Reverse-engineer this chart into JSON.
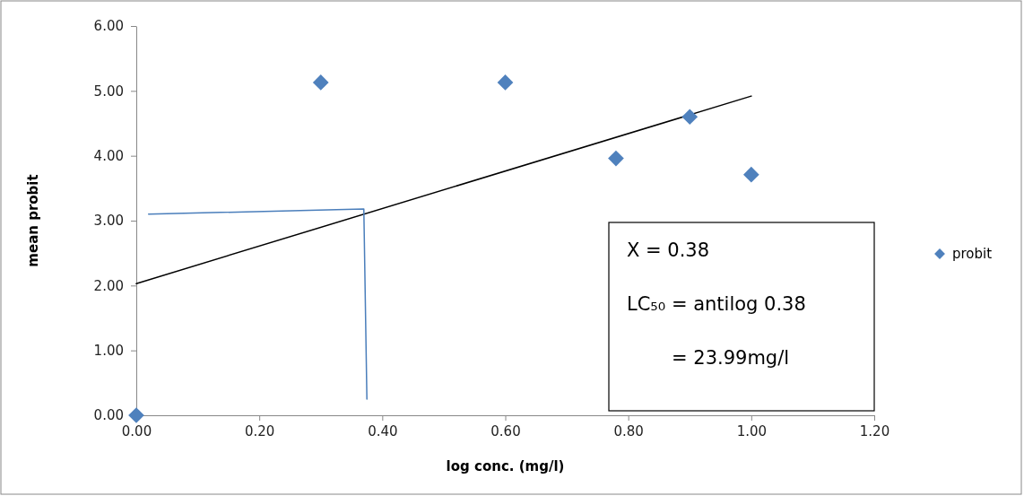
{
  "chart_data": {
    "type": "scatter",
    "xlabel": "log conc. (mg/l)",
    "ylabel": "mean probit",
    "xlim": [
      0,
      1.2
    ],
    "ylim": [
      0,
      6
    ],
    "xticks": [
      {
        "value": 0,
        "label": "0.00"
      },
      {
        "value": 0.2,
        "label": "0.20"
      },
      {
        "value": 0.4,
        "label": "0.40"
      },
      {
        "value": 0.6,
        "label": "0.60"
      },
      {
        "value": 0.8,
        "label": "0.80"
      },
      {
        "value": 1,
        "label": "1.00"
      },
      {
        "value": 1.2,
        "label": "1.20"
      }
    ],
    "yticks": [
      {
        "value": 0,
        "label": "0.00"
      },
      {
        "value": 1,
        "label": "1.00"
      },
      {
        "value": 2,
        "label": "2.00"
      },
      {
        "value": 3,
        "label": "3.00"
      },
      {
        "value": 4,
        "label": "4.00"
      },
      {
        "value": 5,
        "label": "5.00"
      },
      {
        "value": 6,
        "label": "6.00"
      }
    ],
    "legend": "right",
    "grid": false,
    "series": [
      {
        "name": "probit",
        "marker": "diamond",
        "color": "#4f81bd",
        "x": [
          0,
          0.3,
          0.6,
          0.78,
          0.9,
          1.0
        ],
        "values": [
          0,
          5.13,
          5.13,
          3.96,
          4.6,
          3.71
        ]
      },
      {
        "type": "line",
        "marker": "none",
        "color": "#000000",
        "x": [
          0,
          1.0
        ],
        "values": [
          2.03,
          4.92
        ]
      },
      {
        "type": "line",
        "marker": "none",
        "color": "#4a7ebb",
        "x": [
          0.02,
          0.37,
          0.375
        ],
        "values": [
          3.1,
          3.18,
          0.25
        ]
      }
    ],
    "annotations": [
      "X = 0.38",
      "LC₅₀ = antilog 0.38",
      "= 23.99mg/l"
    ]
  }
}
